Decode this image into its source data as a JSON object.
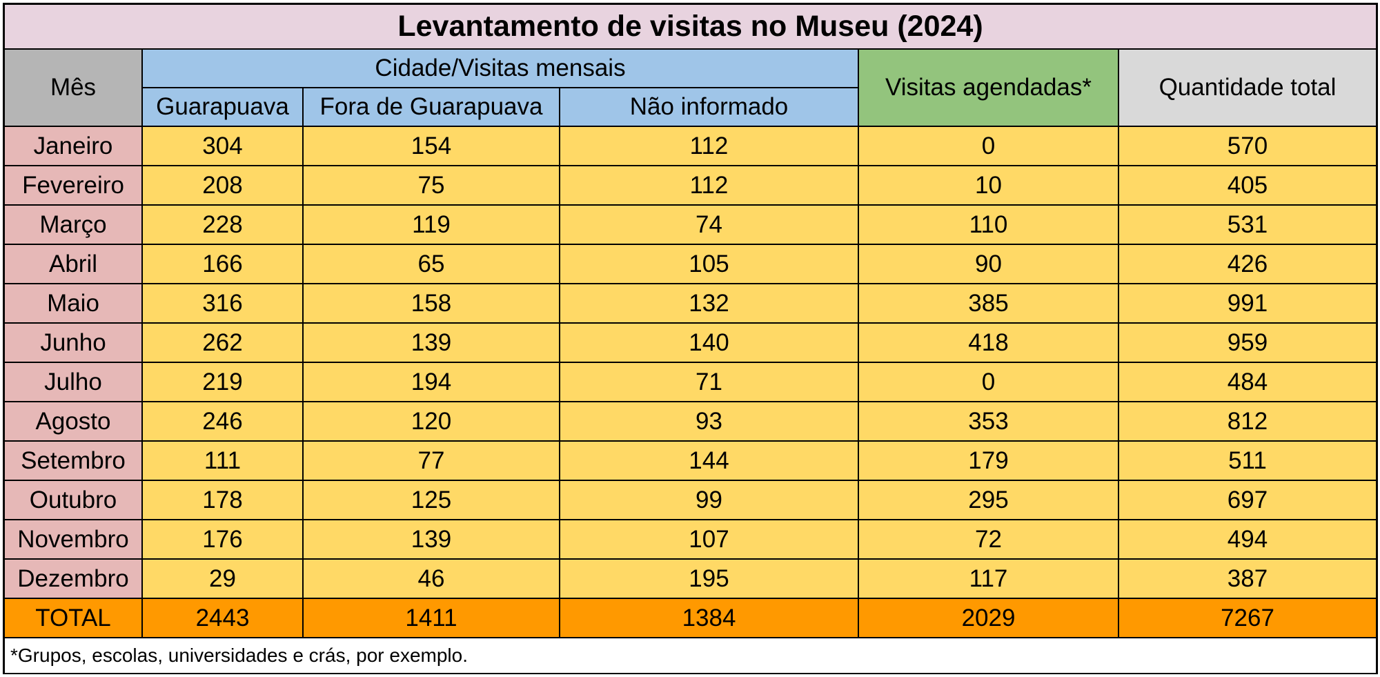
{
  "title": "Levantamento de visitas no Museu (2024)",
  "headers": {
    "month": "Mês",
    "city_group": "Cidade/Visitas mensais",
    "city_columns": [
      "Guarapuava",
      "Fora de Guarapuava",
      "Não informado"
    ],
    "scheduled": "Visitas agendadas*",
    "total": "Quantidade total"
  },
  "rows": [
    {
      "month": "Janeiro",
      "values": [
        "304",
        "154",
        "112",
        "0",
        "570"
      ]
    },
    {
      "month": "Fevereiro",
      "values": [
        "208",
        "75",
        "112",
        "10",
        "405"
      ]
    },
    {
      "month": "Março",
      "values": [
        "228",
        "119",
        "74",
        "110",
        "531"
      ]
    },
    {
      "month": "Abril",
      "values": [
        "166",
        "65",
        "105",
        "90",
        "426"
      ]
    },
    {
      "month": "Maio",
      "values": [
        "316",
        "158",
        "132",
        "385",
        "991"
      ]
    },
    {
      "month": "Junho",
      "values": [
        "262",
        "139",
        "140",
        "418",
        "959"
      ]
    },
    {
      "month": "Julho",
      "values": [
        "219",
        "194",
        "71",
        "0",
        "484"
      ]
    },
    {
      "month": "Agosto",
      "values": [
        "246",
        "120",
        "93",
        "353",
        "812"
      ]
    },
    {
      "month": "Setembro",
      "values": [
        "111",
        "77",
        "144",
        "179",
        "511"
      ]
    },
    {
      "month": "Outubro",
      "values": [
        "178",
        "125",
        "99",
        "295",
        "697"
      ]
    },
    {
      "month": "Novembro",
      "values": [
        "176",
        "139",
        "107",
        "72",
        "494"
      ]
    },
    {
      "month": "Dezembro",
      "values": [
        "29",
        "46",
        "195",
        "117",
        "387"
      ]
    }
  ],
  "totals": {
    "label": "TOTAL",
    "values": [
      "2443",
      "1411",
      "1384",
      "2029",
      "7267"
    ]
  },
  "footnote": "*Grupos, escolas, universidades e crás, por exemplo.",
  "colors": {
    "title_bg": "#e8d3df",
    "month_header_bg": "#b5b5b5",
    "city_header_bg": "#9fc5e8",
    "scheduled_header_bg": "#93c47d",
    "total_header_bg": "#d9d9d9",
    "month_cell_bg": "#e6b8b7",
    "data_cell_bg": "#ffd966",
    "total_row_bg": "#ff9900"
  }
}
